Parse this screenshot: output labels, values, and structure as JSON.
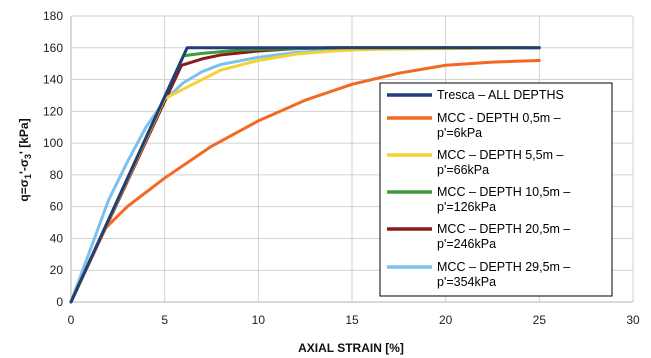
{
  "chart_data": {
    "type": "line",
    "xlabel": "AXIAL STRAIN [%]",
    "ylabel": "q=σ1'-σ3' [kPa]",
    "ylabel_parts": [
      "q=σ",
      "1",
      "'-σ",
      "3",
      "' [kPa]"
    ],
    "xlim": [
      0,
      30
    ],
    "ylim": [
      0,
      180
    ],
    "x_ticks": [
      0,
      5,
      10,
      15,
      20,
      25,
      30
    ],
    "y_ticks": [
      0,
      20,
      40,
      60,
      80,
      100,
      120,
      140,
      160,
      180
    ],
    "grid": true,
    "legend_position": "right",
    "series": [
      {
        "name_lines": [
          "Tresca – ALL DEPTHS"
        ],
        "color": "#1f3f77",
        "x": [
          0,
          6.2,
          25
        ],
        "y": [
          0,
          160,
          160
        ]
      },
      {
        "name_lines": [
          "MCC - DEPTH 0,5m –",
          "p'=6kPa"
        ],
        "color": "#f26a22",
        "x": [
          0,
          1.8,
          3,
          5,
          7.5,
          10,
          12.5,
          15,
          17.5,
          20,
          22.5,
          25
        ],
        "y": [
          0,
          46,
          60,
          78,
          98,
          114,
          127,
          137,
          144,
          149,
          151,
          152
        ]
      },
      {
        "name_lines": [
          "MCC – DEPTH 5,5m –",
          "p'=66kPa"
        ],
        "color": "#f5d233",
        "x": [
          0,
          5,
          6,
          8,
          10,
          12,
          14,
          16,
          20,
          25
        ],
        "y": [
          0,
          128,
          134,
          146,
          152,
          156,
          158,
          159,
          159.5,
          160
        ]
      },
      {
        "name_lines": [
          "MCC – DEPTH 10,5m –",
          "p'=126kPa"
        ],
        "color": "#3d9a3d",
        "x": [
          0,
          6,
          7,
          8,
          9,
          10,
          12,
          14,
          25
        ],
        "y": [
          0,
          155,
          156.5,
          157.5,
          158.5,
          159,
          159.5,
          160,
          160
        ]
      },
      {
        "name_lines": [
          "MCC – DEPTH 20,5m –",
          "p'=246kPa"
        ],
        "color": "#8b1a1a",
        "x": [
          0,
          5.9,
          7,
          8,
          10,
          12,
          14,
          25
        ],
        "y": [
          0,
          149,
          153,
          155.5,
          158,
          159.5,
          160,
          160
        ]
      },
      {
        "name_lines": [
          "MCC – DEPTH 29,5m –",
          "p'=354kPa"
        ],
        "color": "#7cc1ee",
        "x": [
          0,
          1,
          2,
          3,
          4,
          5,
          6,
          7,
          8,
          10,
          12,
          14,
          16,
          25
        ],
        "y": [
          0,
          32,
          64,
          88,
          110,
          127,
          138,
          145,
          149.5,
          154,
          157,
          158.5,
          159.5,
          160
        ]
      }
    ]
  }
}
